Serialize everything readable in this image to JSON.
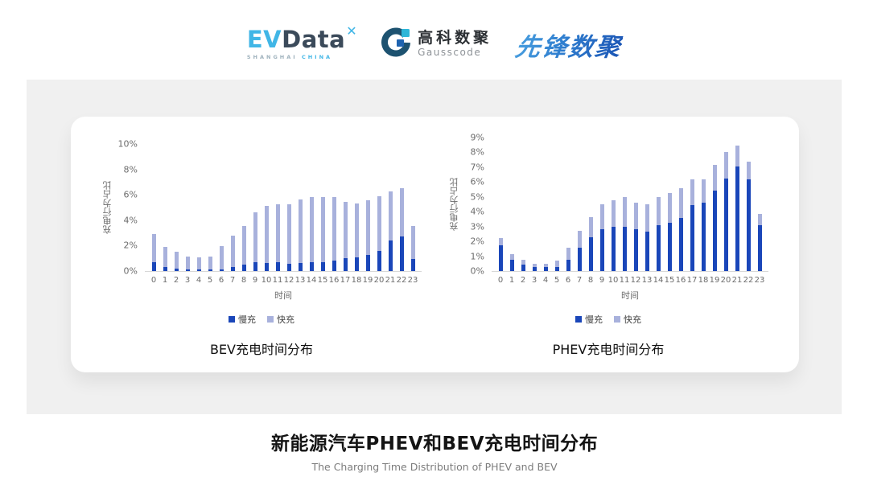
{
  "header": {
    "evdata": {
      "ev": "EV",
      "data": "Data",
      "mark": "✕",
      "sub_left": "SHANGHAI",
      "sub_right": "CHINA"
    },
    "gausscode": {
      "cn": "高科数聚",
      "en": "Gausscode"
    },
    "pioneer": {
      "text": "先锋数聚"
    }
  },
  "footer": {
    "title": "新能源汽车PHEV和BEV充电时间分布",
    "subtitle": "The Charging Time Distribution of PHEV and BEV"
  },
  "colors": {
    "slow": "#1a46b9",
    "fast": "#a8b1dc",
    "panel": "#f0f0f0"
  },
  "chart_data": [
    {
      "id": "bev",
      "type": "bar",
      "stacked": true,
      "title": "BEV充电时间分布",
      "xlabel": "时间",
      "ylabel": "充电行为占比",
      "ylim": [
        0,
        10
      ],
      "yticks": [
        "0%",
        "2%",
        "4%",
        "6%",
        "8%",
        "10%"
      ],
      "grid": false,
      "legend_position": "bottom",
      "categories": [
        "0",
        "1",
        "2",
        "3",
        "4",
        "5",
        "6",
        "7",
        "8",
        "9",
        "10",
        "11",
        "12",
        "13",
        "14",
        "15",
        "16",
        "17",
        "18",
        "19",
        "20",
        "21",
        "22",
        "23"
      ],
      "series": [
        {
          "name": "慢充",
          "color_key": "slow",
          "values": [
            0.7,
            0.35,
            0.2,
            0.1,
            0.1,
            0.1,
            0.15,
            0.35,
            0.5,
            0.7,
            0.65,
            0.7,
            0.6,
            0.65,
            0.7,
            0.7,
            0.8,
            1.0,
            1.1,
            1.3,
            1.6,
            2.4,
            2.75,
            0.95
          ]
        },
        {
          "name": "快充",
          "color_key": "fast",
          "values": [
            2.2,
            1.55,
            1.3,
            1.05,
            0.95,
            1.05,
            1.8,
            2.45,
            3.05,
            3.9,
            4.5,
            4.55,
            4.65,
            5.0,
            5.1,
            5.1,
            5.05,
            4.45,
            4.2,
            4.3,
            4.3,
            3.9,
            3.8,
            2.6
          ]
        }
      ]
    },
    {
      "id": "phev",
      "type": "bar",
      "stacked": true,
      "title": "PHEV充电时间分布",
      "xlabel": "时间",
      "ylabel": "充电行为占比",
      "ylim": [
        0,
        9
      ],
      "yticks": [
        "0%",
        "1%",
        "2%",
        "3%",
        "4%",
        "5%",
        "6%",
        "7%",
        "8%",
        "9%"
      ],
      "grid": false,
      "legend_position": "bottom",
      "categories": [
        "0",
        "1",
        "2",
        "3",
        "4",
        "5",
        "6",
        "7",
        "8",
        "9",
        "10",
        "11",
        "12",
        "13",
        "14",
        "15",
        "16",
        "17",
        "18",
        "19",
        "20",
        "21",
        "22",
        "23"
      ],
      "series": [
        {
          "name": "慢充",
          "color_key": "slow",
          "values": [
            1.75,
            0.75,
            0.45,
            0.25,
            0.25,
            0.3,
            0.75,
            1.6,
            2.3,
            2.8,
            3.0,
            3.0,
            2.8,
            2.65,
            3.1,
            3.25,
            3.6,
            4.45,
            4.6,
            5.4,
            6.25,
            7.05,
            6.2,
            3.1
          ]
        },
        {
          "name": "快充",
          "color_key": "fast",
          "values": [
            0.45,
            0.4,
            0.3,
            0.25,
            0.25,
            0.4,
            0.85,
            1.1,
            1.35,
            1.7,
            1.8,
            2.0,
            1.8,
            1.85,
            1.9,
            2.0,
            2.0,
            1.75,
            1.6,
            1.75,
            1.75,
            1.4,
            1.2,
            0.75
          ]
        }
      ]
    }
  ]
}
